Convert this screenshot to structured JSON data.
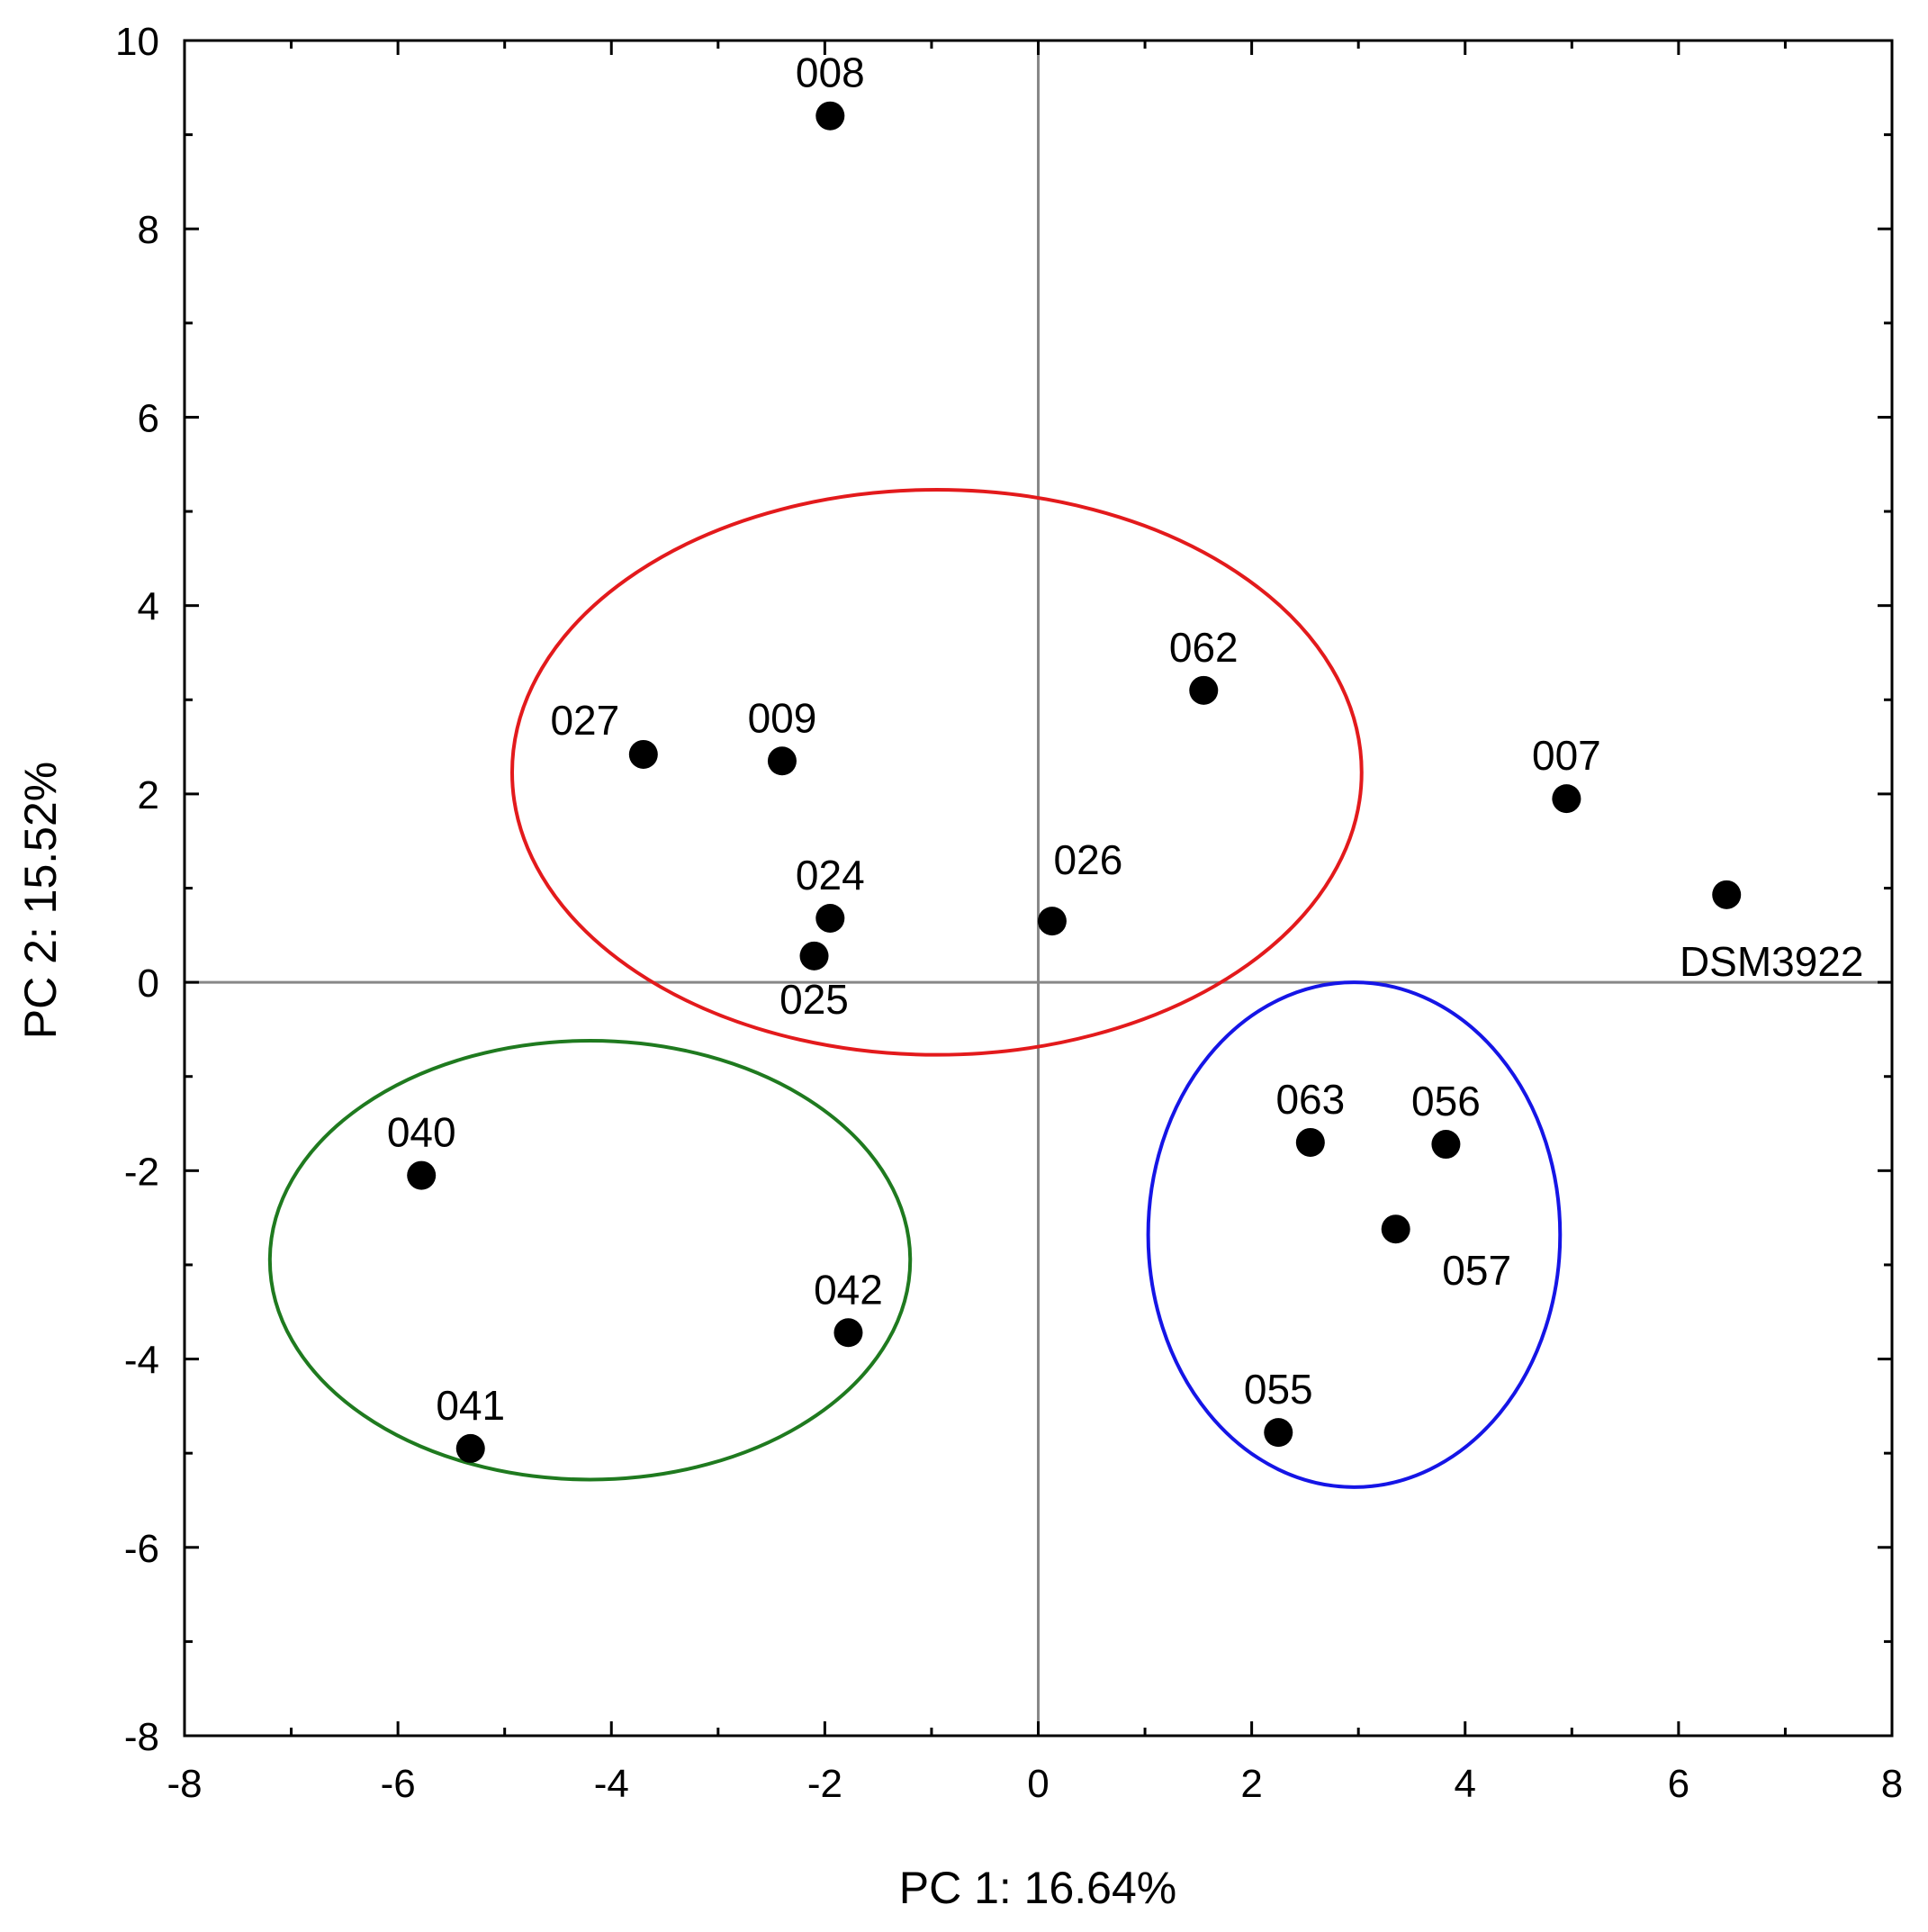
{
  "chart_data": {
    "type": "scatter",
    "title": "",
    "xlabel": "PC 1: 16.64%",
    "ylabel": "PC 2: 15.52%",
    "xlim": [
      -8,
      8
    ],
    "ylim": [
      -8,
      10
    ],
    "xticks": [
      -8,
      -6,
      -4,
      -2,
      0,
      2,
      4,
      6,
      8
    ],
    "yticks": [
      -8,
      -6,
      -4,
      -2,
      0,
      2,
      4,
      6,
      8,
      10
    ],
    "xticks_labels": [
      "-8",
      "-6",
      "-4",
      "-2",
      "0",
      "2",
      "4",
      "6",
      "8"
    ],
    "yticks_labels": [
      "-8",
      "-6",
      "-4",
      "-2",
      "0",
      "2",
      "4",
      "6",
      "8",
      "10"
    ],
    "grid": false,
    "reference_lines": {
      "x": 0,
      "y": 0,
      "color": "#888888"
    },
    "marker_color": "#000000",
    "points": [
      {
        "label": "008",
        "x": -1.95,
        "y": 9.2,
        "label_pos": "above"
      },
      {
        "label": "062",
        "x": 1.55,
        "y": 3.1,
        "label_pos": "above"
      },
      {
        "label": "027",
        "x": -3.7,
        "y": 2.42,
        "label_pos": "upper-left"
      },
      {
        "label": "009",
        "x": -2.4,
        "y": 2.35,
        "label_pos": "above"
      },
      {
        "label": "007",
        "x": 4.95,
        "y": 1.95,
        "label_pos": "above"
      },
      {
        "label": "024",
        "x": -1.95,
        "y": 0.68,
        "label_pos": "above"
      },
      {
        "label": "026",
        "x": 0.13,
        "y": 0.65,
        "label_pos": "upper-right"
      },
      {
        "label": "025",
        "x": -2.1,
        "y": 0.28,
        "label_pos": "below"
      },
      {
        "label": "DSM3922",
        "x": 6.45,
        "y": 0.93,
        "label_pos": "below"
      },
      {
        "label": "063",
        "x": 2.55,
        "y": -1.7,
        "label_pos": "above"
      },
      {
        "label": "056",
        "x": 3.82,
        "y": -1.72,
        "label_pos": "above"
      },
      {
        "label": "057",
        "x": 3.35,
        "y": -2.62,
        "label_pos": "lower-right"
      },
      {
        "label": "055",
        "x": 2.25,
        "y": -4.78,
        "label_pos": "above"
      },
      {
        "label": "040",
        "x": -5.78,
        "y": -2.05,
        "label_pos": "above"
      },
      {
        "label": "042",
        "x": -1.78,
        "y": -3.72,
        "label_pos": "above"
      },
      {
        "label": "041",
        "x": -5.32,
        "y": -4.95,
        "label_pos": "above"
      }
    ],
    "ellipses": [
      {
        "name": "red-cluster",
        "color": "#e31a1c",
        "cx": -0.95,
        "cy": 2.23,
        "rx": 3.98,
        "ry": 3.0
      },
      {
        "name": "green-cluster",
        "color": "#1f7a1f",
        "cx": -4.2,
        "cy": -2.95,
        "rx": 3.0,
        "ry": 2.33
      },
      {
        "name": "blue-cluster",
        "color": "#1515e6",
        "cx": 2.96,
        "cy": -2.68,
        "rx": 1.93,
        "ry": 2.68
      }
    ]
  }
}
